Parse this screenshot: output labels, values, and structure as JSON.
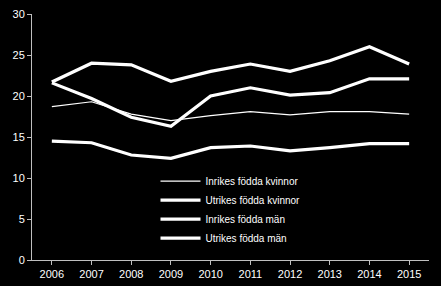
{
  "chart_data": {
    "type": "line",
    "categories": [
      "2006",
      "2007",
      "2008",
      "2009",
      "2010",
      "2011",
      "2012",
      "2013",
      "2014",
      "2015"
    ],
    "series": [
      {
        "name": "Inrikes födda kvinnor",
        "color": "#ffffff",
        "line_style": "thin",
        "values": [
          18.7,
          19.3,
          17.8,
          17.0,
          17.6,
          18.1,
          17.7,
          18.1,
          18.1,
          17.8
        ]
      },
      {
        "name": "Utrikes födda kvinnor",
        "color": "#ffffff",
        "line_style": "thick",
        "values": [
          21.7,
          24.0,
          23.8,
          21.8,
          23.0,
          23.9,
          23.0,
          24.3,
          26.0,
          23.9
        ]
      },
      {
        "name": "Inrikes födda män",
        "color": "#ffffff",
        "line_style": "thick",
        "values": [
          14.5,
          14.3,
          12.8,
          12.4,
          13.7,
          13.9,
          13.3,
          13.7,
          14.2,
          14.2
        ]
      },
      {
        "name": "Utrikes födda män",
        "color": "#ffffff",
        "line_style": "thick",
        "values": [
          21.6,
          19.7,
          17.4,
          16.3,
          20.0,
          21.0,
          20.1,
          20.4,
          22.1,
          22.1
        ]
      }
    ],
    "ylim": [
      0,
      30
    ],
    "yticks": [
      0,
      5,
      10,
      15,
      20,
      25,
      30
    ],
    "grid": false,
    "legend": "bottom"
  }
}
